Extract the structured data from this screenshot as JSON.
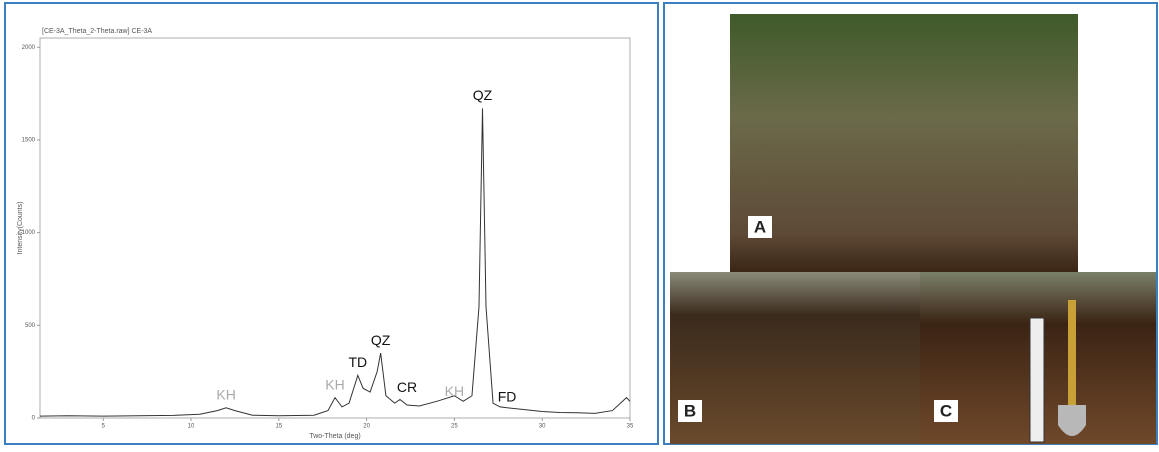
{
  "chart_data": {
    "type": "line",
    "title": "[CE-3A_Theta_2-Theta.raw] CE-3A",
    "x_label": "Two-Theta (deg)",
    "y_label": "Intensity(Counts)",
    "x": [
      1.4,
      3,
      5,
      7,
      9,
      10.5,
      11.5,
      12,
      12.5,
      13.5,
      15,
      17,
      17.8,
      18.2,
      18.6,
      19,
      19.5,
      19.8,
      20.2,
      20.6,
      20.8,
      21.1,
      21.6,
      21.9,
      22.3,
      23,
      24,
      25,
      25.5,
      26,
      26.4,
      26.6,
      26.8,
      27.2,
      27.6,
      28,
      29,
      30,
      31,
      32,
      33,
      34,
      34.8,
      35
    ],
    "values": [
      10,
      12,
      10,
      12,
      14,
      20,
      40,
      55,
      40,
      15,
      12,
      15,
      40,
      110,
      60,
      80,
      230,
      160,
      140,
      250,
      350,
      120,
      80,
      100,
      70,
      65,
      90,
      120,
      90,
      120,
      600,
      1670,
      600,
      80,
      60,
      55,
      45,
      35,
      30,
      28,
      25,
      40,
      110,
      90
    ],
    "color": "#333333",
    "xlim": [
      1.4,
      35
    ],
    "ylim": [
      0,
      2050
    ],
    "xticks": [
      5,
      10,
      15,
      20,
      25,
      30,
      35
    ],
    "yticks": [
      0,
      500,
      1000,
      1500,
      2000
    ],
    "annotations": [
      {
        "text": "KH",
        "x": 12,
        "y": 120,
        "color": "#aaaaaa"
      },
      {
        "text": "KH",
        "x": 18.2,
        "y": 175,
        "color": "#aaaaaa"
      },
      {
        "text": "TD",
        "x": 19.5,
        "y": 295,
        "color": "#111111"
      },
      {
        "text": "QZ",
        "x": 20.8,
        "y": 415,
        "color": "#111111"
      },
      {
        "text": "CR",
        "x": 22.3,
        "y": 160,
        "color": "#111111"
      },
      {
        "text": "KH",
        "x": 25,
        "y": 140,
        "color": "#aaaaaa"
      },
      {
        "text": "QZ",
        "x": 26.6,
        "y": 1735,
        "color": "#111111"
      },
      {
        "text": "FD",
        "x": 28,
        "y": 110,
        "color": "#111111"
      }
    ]
  },
  "photos": [
    {
      "label": "A"
    },
    {
      "label": "B"
    },
    {
      "label": "C"
    }
  ]
}
